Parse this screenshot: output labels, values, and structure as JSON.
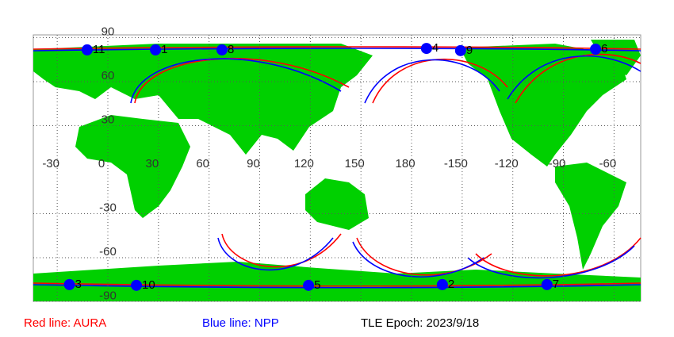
{
  "map": {
    "lat_ticks": [
      90,
      60,
      30,
      -30,
      -60,
      -90
    ],
    "lon_ticks": [
      -30,
      0,
      30,
      60,
      90,
      120,
      150,
      180,
      -150,
      -120,
      -90,
      -60
    ],
    "point_color": "#0000ff",
    "satellites": [
      {
        "label": "11",
        "lon": -8.5,
        "lat": 79.5
      },
      {
        "label": "1",
        "lon": 32,
        "lat": 79.5
      },
      {
        "label": "8",
        "lon": 71.4,
        "lat": 79.5
      },
      {
        "label": "4",
        "lon": -167.4,
        "lat": 80.5
      },
      {
        "label": "9",
        "lon": -147.2,
        "lat": 79
      },
      {
        "label": "6",
        "lon": -67.2,
        "lat": 80
      },
      {
        "label": "3",
        "lon": -19,
        "lat": -80.5
      },
      {
        "label": "10",
        "lon": 20.7,
        "lat": -81
      },
      {
        "label": "5",
        "lon": 122.7,
        "lat": -81
      },
      {
        "label": "2",
        "lon": -158,
        "lat": -80.5
      },
      {
        "label": "7",
        "lon": -96,
        "lat": -80.5
      }
    ]
  },
  "legend": {
    "aura": "Red line: AURA",
    "npp": "Blue line: NPP",
    "epoch": "TLE Epoch: 2023/9/18"
  }
}
